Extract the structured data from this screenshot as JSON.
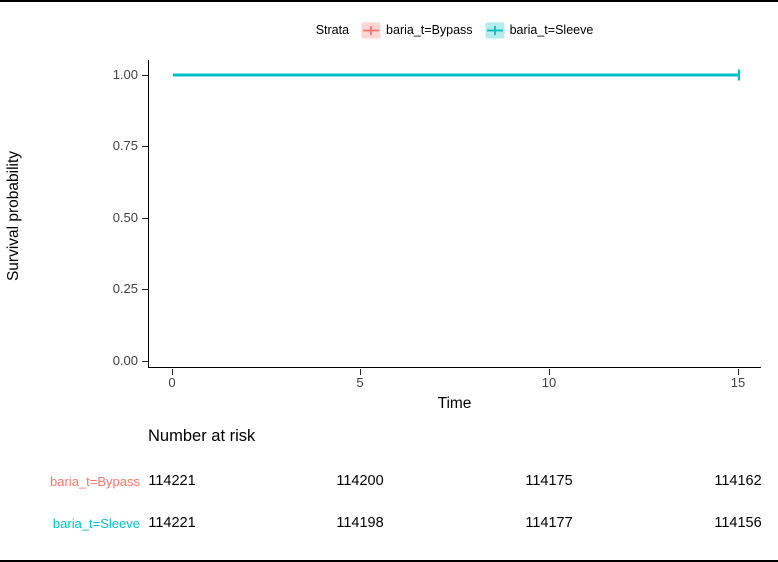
{
  "legend": {
    "title": "Strata",
    "items": [
      {
        "label": "baria_t=Bypass",
        "color": "#F8766D"
      },
      {
        "label": "baria_t=Sleeve",
        "color": "#00BFC4"
      }
    ]
  },
  "chart_data": {
    "type": "line",
    "subtype": "kaplan-meier-survival-curve",
    "title": "",
    "xlabel": "Time",
    "ylabel": "Survival probability",
    "xlim": [
      0,
      15
    ],
    "ylim": [
      0.0,
      1.0
    ],
    "xticks": [
      0,
      5,
      10,
      15
    ],
    "xtick_labels": [
      "0",
      "5",
      "10",
      "15"
    ],
    "ytick_labels_top_to_bottom": [
      "1.00",
      "0.75",
      "0.50",
      "0.25",
      "0.00"
    ],
    "grid": false,
    "legend_position": "top",
    "series": [
      {
        "name": "baria_t=Bypass",
        "color": "#F8766D",
        "x": [
          0,
          15
        ],
        "y": [
          1.0,
          1.0
        ],
        "censor_times": []
      },
      {
        "name": "baria_t=Sleeve",
        "color": "#00BFC4",
        "x": [
          0,
          15
        ],
        "y": [
          1.0,
          1.0
        ],
        "censor_times": [
          15
        ]
      }
    ]
  },
  "risk_table": {
    "title": "Number at risk",
    "rows": [
      {
        "label": "baria_t=Bypass",
        "color": "#F8766D",
        "values": [
          "114221",
          "114200",
          "114175",
          "114162"
        ]
      },
      {
        "label": "baria_t=Sleeve",
        "color": "#00BFC4",
        "values": [
          "114221",
          "114198",
          "114177",
          "114156"
        ]
      }
    ]
  }
}
